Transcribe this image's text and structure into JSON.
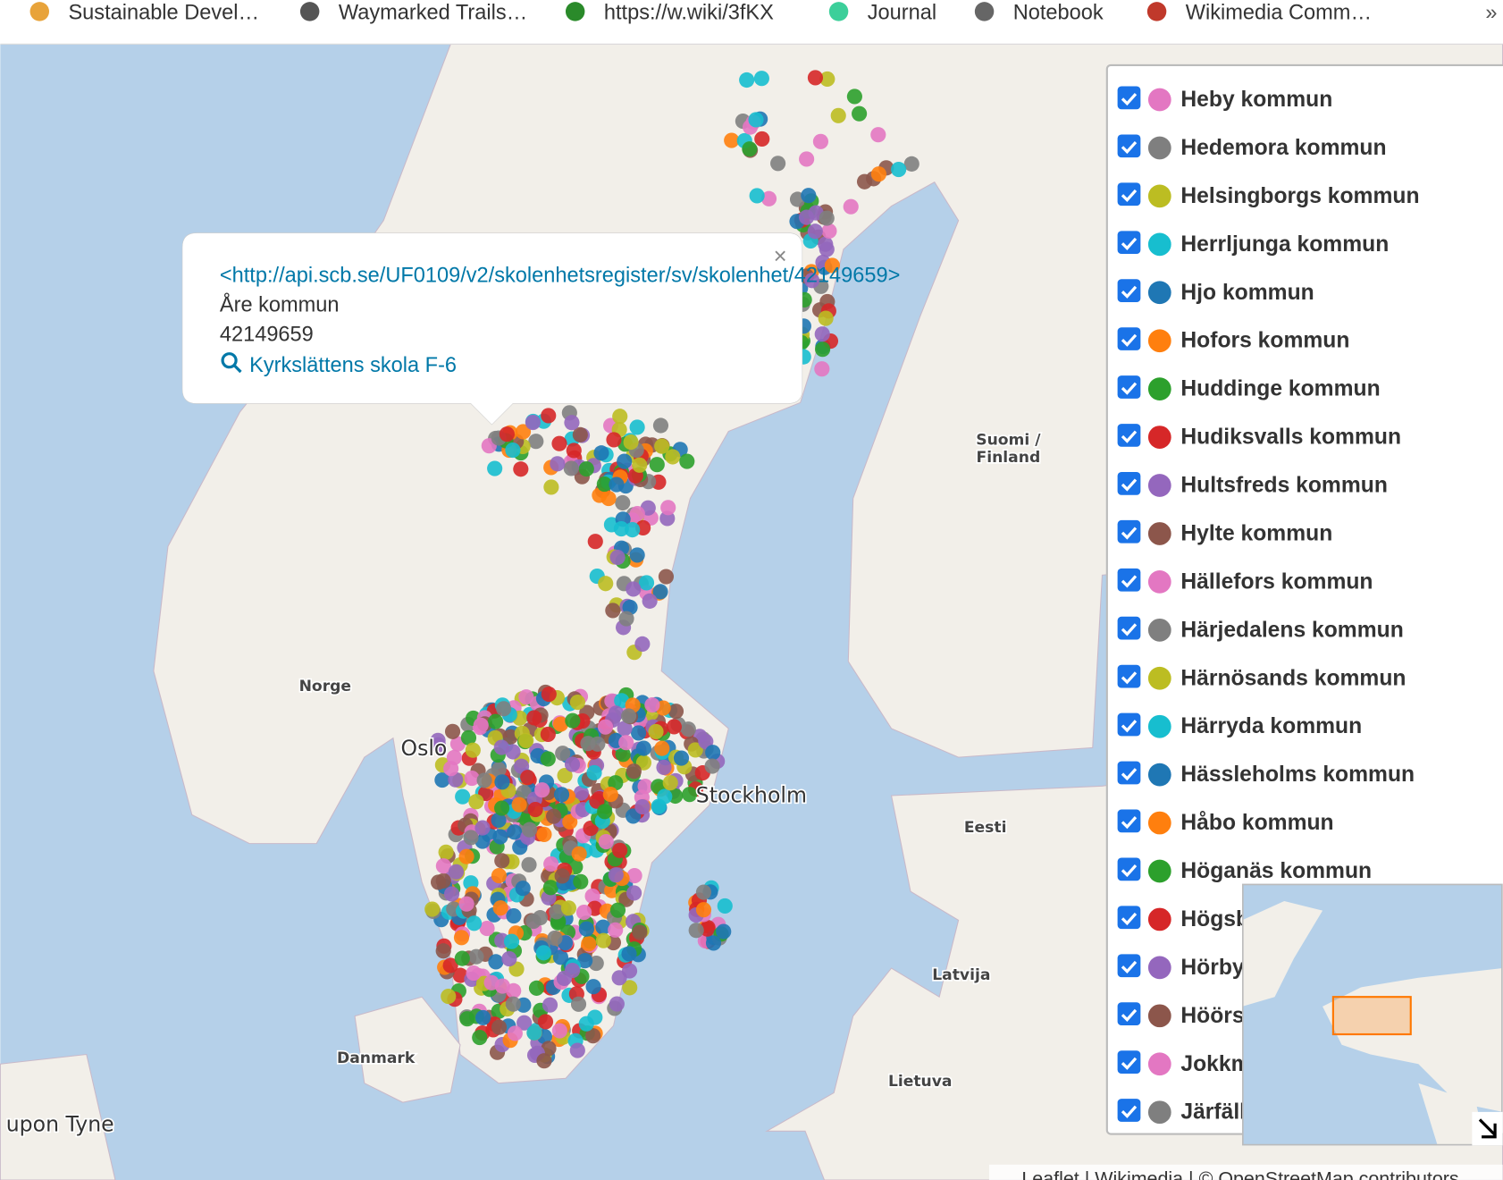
{
  "bookmarks": {
    "items": [
      "Sustainable Devel…",
      "Waymarked Trails…",
      "https://w.wiki/3fKX",
      "Journal",
      "Notebook",
      "Wikimedia Comm…"
    ],
    "overflow": "»"
  },
  "popup": {
    "uri": "<http://api.scb.se/UF0109/v2/skolenhetsregister/sv/skolenhet/42149659>",
    "municipality": "Åre kommun",
    "id": "42149659",
    "school": "Kyrkslättens skola F-6",
    "close": "×"
  },
  "map_labels": [
    {
      "text": "Norge"
    },
    {
      "text": "Oslo"
    },
    {
      "text": "Stockholm"
    },
    {
      "lines": [
        "Suomi /",
        "Finland"
      ]
    },
    {
      "text": "Eesti"
    },
    {
      "text": "Latvija"
    },
    {
      "text": "Lietuva"
    },
    {
      "text": "Danmark"
    },
    {
      "text": "upon Tyne"
    }
  ],
  "legend": {
    "items": [
      {
        "label": "Heby kommun",
        "color": "#e377c2"
      },
      {
        "label": "Hedemora kommun",
        "color": "#7f7f7f"
      },
      {
        "label": "Helsingborgs kommun",
        "color": "#bcbd22"
      },
      {
        "label": "Herrljunga kommun",
        "color": "#17becf"
      },
      {
        "label": "Hjo kommun",
        "color": "#1f77b4"
      },
      {
        "label": "Hofors kommun",
        "color": "#ff7f0e"
      },
      {
        "label": "Huddinge kommun",
        "color": "#2ca02c"
      },
      {
        "label": "Hudiksvalls kommun",
        "color": "#d62728"
      },
      {
        "label": "Hultsfreds kommun",
        "color": "#9467bd"
      },
      {
        "label": "Hylte kommun",
        "color": "#8c564b"
      },
      {
        "label": "Hällefors kommun",
        "color": "#e377c2"
      },
      {
        "label": "Härjedalens kommun",
        "color": "#7f7f7f"
      },
      {
        "label": "Härnösands kommun",
        "color": "#bcbd22"
      },
      {
        "label": "Härryda kommun",
        "color": "#17becf"
      },
      {
        "label": "Hässleholms kommun",
        "color": "#1f77b4"
      },
      {
        "label": "Håbo kommun",
        "color": "#ff7f0e"
      },
      {
        "label": "Höganäs kommun",
        "color": "#2ca02c"
      },
      {
        "label": "Högsby kommun",
        "color": "#d62728"
      },
      {
        "label": "Hörby kommun",
        "color": "#9467bd"
      },
      {
        "label": "Höörs kommun",
        "color": "#8c564b"
      },
      {
        "label": "Jokkmokks kommun",
        "color": "#e377c2"
      },
      {
        "label": "Järfälla kommun",
        "color": "#7f7f7f"
      }
    ]
  },
  "attribution": "Leaflet | Wikimedia | © OpenStreetMap contributors"
}
